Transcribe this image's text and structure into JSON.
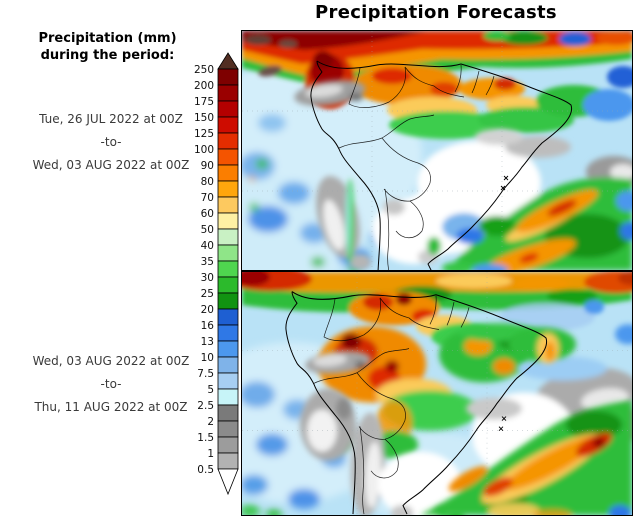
{
  "title": "Precipitation Forecasts",
  "legend": {
    "heading": [
      "Precipitation (mm)",
      "during the period:"
    ],
    "ticks": [
      "250",
      "200",
      "175",
      "150",
      "125",
      "100",
      "90",
      "80",
      "70",
      "60",
      "50",
      "40",
      "35",
      "30",
      "25",
      "20",
      "16",
      "13",
      "10",
      "7.5",
      "5",
      "2.5",
      "2",
      "1.5",
      "1",
      "0.5"
    ],
    "cell_colors": [
      "#7E0000",
      "#9A0000",
      "#B40000",
      "#CE0C00",
      "#E42D00",
      "#F45400",
      "#FB7E00",
      "#FFA60D",
      "#FDC95F",
      "#FEF0A4",
      "#C9F1C4",
      "#8FE588",
      "#4FD54F",
      "#2CBA2C",
      "#119311",
      "#1E5FD2",
      "#2F78E6",
      "#4C98EE",
      "#7FB3E9",
      "#A7CEF2",
      "#C7F4F8",
      "#7A7A7A",
      "#8B8B8B",
      "#9C9C9C",
      "#B2B2B2"
    ],
    "top_arrow_color": "#522E22",
    "bottom_arrow_color": "#FFFFFF"
  },
  "periods": [
    {
      "start": "Tue, 26 JUL 2022 at 00Z",
      "separator": "-to-",
      "end": "Wed, 03 AUG 2022 at 00Z"
    },
    {
      "start": "Wed, 03 AUG 2022 at 00Z",
      "separator": "-to-",
      "end": "Thu, 11 AUG 2022 at 00Z"
    }
  ]
}
